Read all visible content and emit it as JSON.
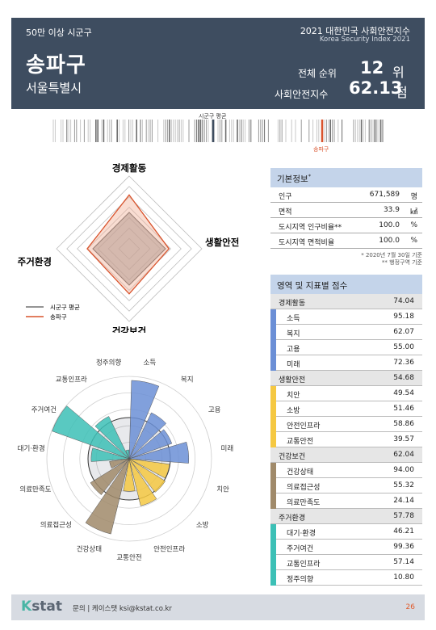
{
  "header": {
    "category": "50만 이상 시군구",
    "district": "송파구",
    "province": "서울특별시",
    "title": "2021 대한민국 사회안전지수",
    "subtitle": "Korea Security Index 2021",
    "rank_label": "전체 순위",
    "rank_value": "12",
    "rank_unit": "위",
    "score_label": "사회안전지수",
    "score_value": "62.13",
    "score_unit": "점"
  },
  "barcode": {
    "avg_label": "시군구 평균",
    "me_label": "송파구",
    "avg_color": "#3e4d60",
    "me_color": "#d9532c"
  },
  "radar": {
    "axes": [
      "경제활동",
      "생활안전",
      "건강보건",
      "주거환경"
    ],
    "legend_avg": "시군구 평균",
    "legend_me": "송파구",
    "avg_color": "#555555",
    "me_color": "#d9532c"
  },
  "chart_data": {
    "type": "radar",
    "axes": [
      "경제활동",
      "생활안전",
      "건강보건",
      "주거환경"
    ],
    "series": [
      {
        "name": "시군구 평균",
        "values": [
          50,
          50,
          50,
          50
        ]
      },
      {
        "name": "송파구",
        "values": [
          74.04,
          54.68,
          62.04,
          57.78
        ]
      }
    ],
    "range": [
      0,
      100
    ]
  },
  "polar": {
    "labels": [
      "소득",
      "복지",
      "고용",
      "미래",
      "치안",
      "소방",
      "안전인프라",
      "교통안전",
      "건강상태",
      "의료접근성",
      "의료만족도",
      "대기·환경",
      "주거여건",
      "교통인프라",
      "정주의향"
    ],
    "values": [
      95.18,
      62.07,
      55.0,
      72.36,
      49.54,
      51.46,
      58.86,
      39.57,
      94.0,
      55.32,
      24.14,
      46.21,
      99.36,
      57.14,
      10.8
    ],
    "colors": [
      "#6b8fd6",
      "#6b8fd6",
      "#6b8fd6",
      "#6b8fd6",
      "#f5c842",
      "#f5c842",
      "#f5c842",
      "#f5c842",
      "#a08a6a",
      "#a08a6a",
      "#a08a6a",
      "#3cc0b6",
      "#3cc0b6",
      "#3cc0b6",
      "#3cc0b6"
    ]
  },
  "info": {
    "title": "기본정보",
    "title_mark": "*",
    "rows": [
      {
        "label": "인구",
        "value": "671,589",
        "unit": "명"
      },
      {
        "label": "면적",
        "value": "33.9",
        "unit": "㎢"
      },
      {
        "label": "도시지역 인구비율**",
        "value": "100.0",
        "unit": "%"
      },
      {
        "label": "도시지역 면적비율",
        "value": "100.0",
        "unit": "%"
      }
    ],
    "note1": "* 2020년 7월 30일 기준",
    "note2": "** 행정구역 기준"
  },
  "scores": {
    "title": "영역 및 지표별 점수",
    "domains": [
      {
        "name": "경제활동",
        "value": "74.04",
        "color": "#6b8fd6",
        "items": [
          {
            "name": "소득",
            "value": "95.18"
          },
          {
            "name": "복지",
            "value": "62.07"
          },
          {
            "name": "고용",
            "value": "55.00"
          },
          {
            "name": "미래",
            "value": "72.36"
          }
        ]
      },
      {
        "name": "생활안전",
        "value": "54.68",
        "color": "#f5c842",
        "items": [
          {
            "name": "치안",
            "value": "49.54"
          },
          {
            "name": "소방",
            "value": "51.46"
          },
          {
            "name": "안전인프라",
            "value": "58.86"
          },
          {
            "name": "교통안전",
            "value": "39.57"
          }
        ]
      },
      {
        "name": "건강보건",
        "value": "62.04",
        "color": "#a08a6a",
        "items": [
          {
            "name": "건강상태",
            "value": "94.00"
          },
          {
            "name": "의료접근성",
            "value": "55.32"
          },
          {
            "name": "의료만족도",
            "value": "24.14"
          }
        ]
      },
      {
        "name": "주거환경",
        "value": "57.78",
        "color": "#3cc0b6",
        "items": [
          {
            "name": "대기·환경",
            "value": "46.21"
          },
          {
            "name": "주거여건",
            "value": "99.36"
          },
          {
            "name": "교통인프라",
            "value": "57.14"
          },
          {
            "name": "정주의향",
            "value": "10.80"
          }
        ]
      }
    ]
  },
  "footer": {
    "logo_k": "K",
    "logo_rest": "stat",
    "contact": "문의 | 케이스탯 ksi@kstat.co.kr",
    "page": "26"
  }
}
